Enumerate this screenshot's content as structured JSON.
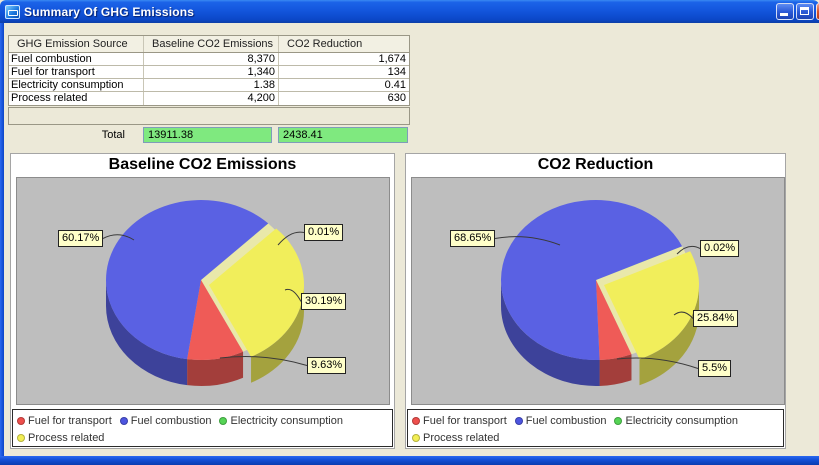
{
  "window": {
    "title": "Summary Of GHG Emissions"
  },
  "titlebar": {
    "icons": {
      "app": "app-icon",
      "minimize": "minimize-icon",
      "maximize": "maximize-icon",
      "close": "close-icon"
    }
  },
  "table": {
    "headers": [
      "GHG Emission Source",
      "Baseline CO2 Emissions",
      "CO2 Reduction"
    ],
    "rows": [
      {
        "source": "Fuel combustion",
        "baseline": "8,370",
        "reduction": "1,674"
      },
      {
        "source": "Fuel for transport",
        "baseline": "1,340",
        "reduction": "134"
      },
      {
        "source": "Electricity consumption",
        "baseline": "1.38",
        "reduction": "0.41"
      },
      {
        "source": "Process related",
        "baseline": "4,200",
        "reduction": "630"
      }
    ]
  },
  "total": {
    "label": "Total",
    "baseline": "13911.38",
    "reduction": "2438.41",
    "field_bg": "#7FE97F"
  },
  "legend": [
    {
      "label": "Fuel for transport",
      "color": "#EE4F4C"
    },
    {
      "label": "Fuel combustion",
      "color": "#4D55E0"
    },
    {
      "label": "Electricity consumption",
      "color": "#55D455"
    },
    {
      "label": "Process related",
      "color": "#F2EE54"
    }
  ],
  "chart_data": [
    {
      "type": "pie",
      "title": "Baseline CO2 Emissions",
      "total": 13911.38,
      "start_angle": 45,
      "depth_3d": true,
      "legend_position": "bottom",
      "slices": [
        {
          "label": "Electricity consumption",
          "value": 1.38,
          "pct": "0.01%",
          "color": "#55D455"
        },
        {
          "label": "Process related",
          "value": 4200,
          "pct": "30.19%",
          "color": "#F1EE5B",
          "exploded": true
        },
        {
          "label": "Fuel for transport",
          "value": 1340,
          "pct": "9.63%",
          "color": "#EF5B57"
        },
        {
          "label": "Fuel combustion",
          "value": 8370,
          "pct": "60.17%",
          "color": "#5A61E3"
        }
      ]
    },
    {
      "type": "pie",
      "title": "CO2 Reduction",
      "total": 2438.41,
      "start_angle": 25,
      "depth_3d": true,
      "legend_position": "bottom",
      "slices": [
        {
          "label": "Electricity consumption",
          "value": 0.41,
          "pct": "0.02%",
          "color": "#55D455"
        },
        {
          "label": "Process related",
          "value": 630,
          "pct": "25.84%",
          "color": "#F1EE5B",
          "exploded": true
        },
        {
          "label": "Fuel for transport",
          "value": 134,
          "pct": "5.5%",
          "color": "#EF5B57"
        },
        {
          "label": "Fuel combustion",
          "value": 1674,
          "pct": "68.65%",
          "color": "#5A61E3"
        }
      ]
    }
  ]
}
